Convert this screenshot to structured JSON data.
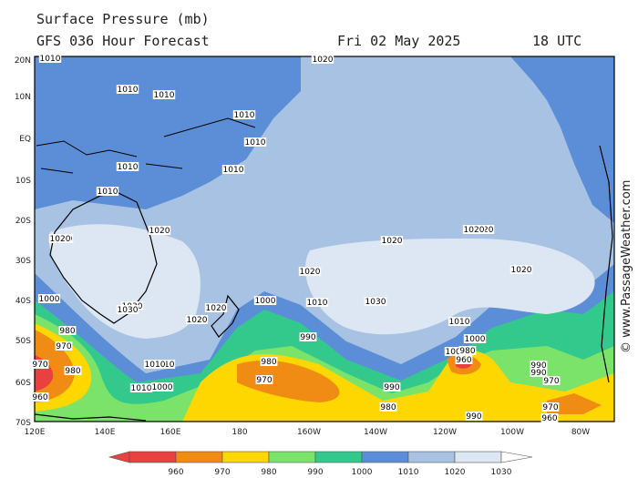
{
  "header": {
    "title": "Surface Pressure (mb)",
    "subtitle": "GFS 036 Hour Forecast",
    "date": "Fri 02 May 2025",
    "time": "18 UTC"
  },
  "axes": {
    "lat_labels": [
      "20N",
      "10N",
      "EQ",
      "10S",
      "20S",
      "30S",
      "40S",
      "50S",
      "60S",
      "70S"
    ],
    "lon_labels": [
      "120E",
      "140E",
      "160E",
      "180",
      "160W",
      "140W",
      "120W",
      "100W",
      "80W"
    ]
  },
  "colorbar": {
    "values": [
      "960",
      "970",
      "980",
      "990",
      "1000",
      "1010",
      "1020",
      "1030"
    ],
    "colors": [
      "#e8413f",
      "#f08c14",
      "#ffd700",
      "#7be36a",
      "#34c98c",
      "#5b8ed6",
      "#a7c2e3",
      "#dde6f3"
    ]
  },
  "isobar_labels": [
    {
      "text": "1020",
      "color": "#a7c2e3"
    },
    {
      "text": "1010",
      "color": "#5b8ed6"
    },
    {
      "text": "1010",
      "color": "#5b8ed6"
    },
    {
      "text": "1010",
      "color": "#5b8ed6"
    },
    {
      "text": "1010",
      "color": "#5b8ed6"
    },
    {
      "text": "1010",
      "color": "#5b8ed6"
    },
    {
      "text": "1010",
      "color": "#5b8ed6"
    },
    {
      "text": "1010",
      "color": "#5b8ed6"
    },
    {
      "text": "1010",
      "color": "#5b8ed6"
    },
    {
      "text": "1020",
      "color": "#a7c2e3"
    },
    {
      "text": "1020",
      "color": "#a7c2e3"
    },
    {
      "text": "1020",
      "color": "#a7c2e3"
    },
    {
      "text": "1020",
      "color": "#a7c2e3"
    },
    {
      "text": "1020",
      "color": "#a7c2e3"
    },
    {
      "text": "1020",
      "color": "#a7c2e3"
    },
    {
      "text": "1030",
      "color": "#dde6f3"
    },
    {
      "text": "1030",
      "color": "#dde6f3"
    },
    {
      "text": "1030",
      "color": "#dde6f3"
    },
    {
      "text": "1020",
      "color": "#a7c2e3"
    },
    {
      "text": "1020",
      "color": "#a7c2e3"
    },
    {
      "text": "1010",
      "color": "#5b8ed6"
    },
    {
      "text": "1000",
      "color": "#34c98c"
    },
    {
      "text": "1000",
      "color": "#34c98c"
    },
    {
      "text": "1010",
      "color": "#5b8ed6"
    },
    {
      "text": "1010",
      "color": "#5b8ed6"
    },
    {
      "text": "1000",
      "color": "#34c98c"
    },
    {
      "text": "990",
      "color": "#7be36a"
    },
    {
      "text": "980",
      "color": "#ffd700"
    },
    {
      "text": "970",
      "color": "#f08c14"
    },
    {
      "text": "980",
      "color": "#ffd700"
    },
    {
      "text": "970",
      "color": "#f08c14"
    },
    {
      "text": "960",
      "color": "#e8413f"
    },
    {
      "text": "990",
      "color": "#7be36a"
    },
    {
      "text": "1010",
      "color": "#5b8ed6"
    },
    {
      "text": "1000",
      "color": "#34c98c"
    },
    {
      "text": "1000",
      "color": "#34c98c"
    },
    {
      "text": "980",
      "color": "#ffd700"
    },
    {
      "text": "970",
      "color": "#f08c14"
    },
    {
      "text": "990",
      "color": "#7be36a"
    },
    {
      "text": "980",
      "color": "#ffd700"
    },
    {
      "text": "980",
      "color": "#ffd700"
    },
    {
      "text": "960",
      "color": "#e8413f"
    },
    {
      "text": "990",
      "color": "#7be36a"
    },
    {
      "text": "990",
      "color": "#7be36a"
    },
    {
      "text": "970",
      "color": "#f08c14"
    },
    {
      "text": "970",
      "color": "#f08c14"
    },
    {
      "text": "960",
      "color": "#e8413f"
    },
    {
      "text": "1010",
      "color": "#5b8ed6"
    },
    {
      "text": "1020",
      "color": "#a7c2e3"
    },
    {
      "text": "1020",
      "color": "#a7c2e3"
    },
    {
      "text": "1030",
      "color": "#dde6f3"
    }
  ],
  "credit": "© www.PassageWeather.com"
}
